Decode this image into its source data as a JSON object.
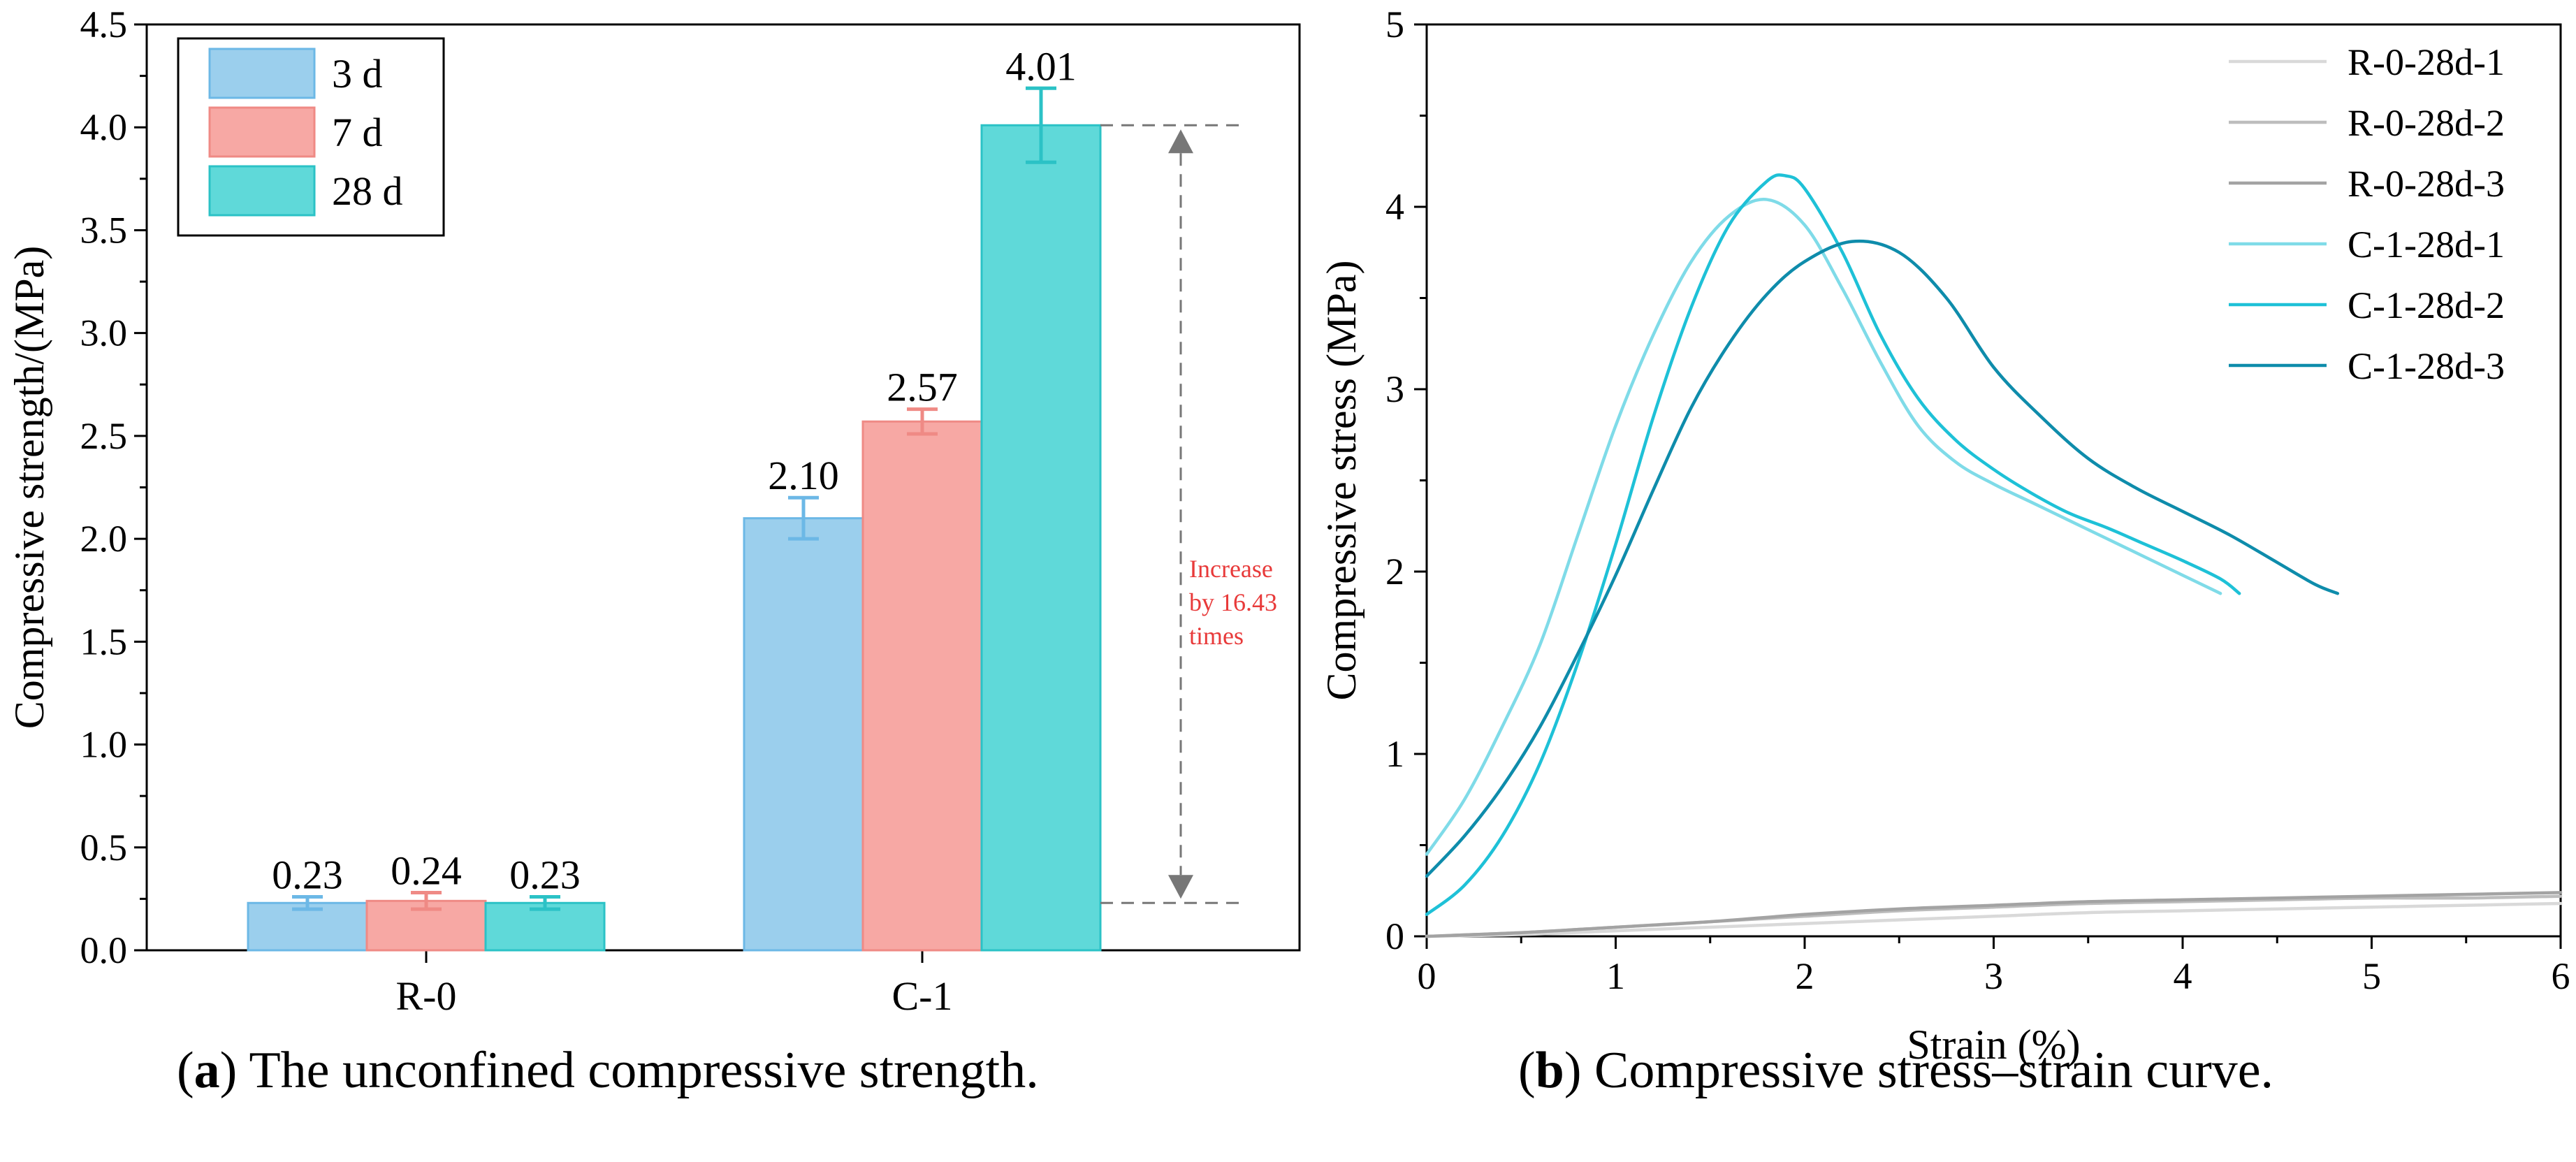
{
  "chart_data": [
    {
      "type": "bar",
      "ylabel": "Compressive strength/(MPa)",
      "xlabel": "",
      "ylim": [
        0,
        4.5
      ],
      "yticks": [
        "0.0",
        "0.5",
        "1.0",
        "1.5",
        "2.0",
        "2.5",
        "3.0",
        "3.5",
        "4.0",
        "4.5"
      ],
      "categories": [
        "R-0",
        "C-1"
      ],
      "series": [
        {
          "name": "3 d",
          "color": "#9bcfed",
          "values": [
            0.23,
            2.1
          ],
          "labels": [
            "0.23",
            "2.10"
          ],
          "errors": [
            0.03,
            0.1
          ]
        },
        {
          "name": "7 d",
          "color": "#f7a8a4",
          "values": [
            0.24,
            2.57
          ],
          "labels": [
            "0.24",
            "2.57"
          ],
          "errors": [
            0.04,
            0.06
          ]
        },
        {
          "name": "28 d",
          "color": "#5fd9d9",
          "values": [
            0.23,
            4.01
          ],
          "labels": [
            "0.23",
            "4.01"
          ],
          "errors": [
            0.03,
            0.18
          ]
        }
      ],
      "annotation": {
        "lines": [
          "Increase",
          "by 16.43",
          "times"
        ],
        "color": "#e83a3a",
        "from": 0.23,
        "to": 4.01
      },
      "legend_position": "top-left",
      "caption_prefix": "a",
      "caption": "The unconfined compressive strength."
    },
    {
      "type": "line",
      "xlabel": "Strain (%)",
      "ylabel": "Compressive stress (MPa)",
      "xlim": [
        0,
        6
      ],
      "ylim": [
        0,
        5
      ],
      "xticks": [
        "0",
        "1",
        "2",
        "3",
        "4",
        "5",
        "6"
      ],
      "yticks": [
        "0",
        "1",
        "2",
        "3",
        "4",
        "5"
      ],
      "legend_position": "top-right",
      "series": [
        {
          "name": "R-0-28d-1",
          "color": "#d9d9d9",
          "x": [
            0,
            0.5,
            1,
            1.5,
            2,
            2.5,
            3,
            3.5,
            4,
            4.5,
            5,
            5.5,
            6
          ],
          "y": [
            0,
            0.01,
            0.03,
            0.05,
            0.07,
            0.09,
            0.11,
            0.13,
            0.14,
            0.15,
            0.16,
            0.17,
            0.18
          ]
        },
        {
          "name": "R-0-28d-2",
          "color": "#bdbdbd",
          "x": [
            0,
            0.5,
            1,
            1.5,
            2,
            2.5,
            3,
            3.5,
            4,
            4.5,
            5,
            5.5,
            6
          ],
          "y": [
            0,
            0.02,
            0.05,
            0.08,
            0.11,
            0.14,
            0.16,
            0.18,
            0.19,
            0.2,
            0.21,
            0.21,
            0.22
          ]
        },
        {
          "name": "R-0-28d-3",
          "color": "#a3a3a3",
          "x": [
            0,
            0.5,
            1,
            1.5,
            2,
            2.5,
            3,
            3.5,
            4,
            4.5,
            5,
            5.5,
            6
          ],
          "y": [
            0,
            0.02,
            0.05,
            0.08,
            0.12,
            0.15,
            0.17,
            0.19,
            0.2,
            0.21,
            0.22,
            0.23,
            0.24
          ]
        },
        {
          "name": "C-1-28d-1",
          "color": "#7fdbe8",
          "x": [
            0,
            0.2,
            0.4,
            0.6,
            0.8,
            1.0,
            1.2,
            1.4,
            1.6,
            1.8,
            2.0,
            2.2,
            2.4,
            2.6,
            2.8,
            3.0,
            3.2,
            3.4,
            3.6,
            3.8,
            4.0,
            4.2
          ],
          "y": [
            0.45,
            0.75,
            1.15,
            1.6,
            2.2,
            2.8,
            3.3,
            3.7,
            3.95,
            4.04,
            3.9,
            3.55,
            3.15,
            2.8,
            2.6,
            2.48,
            2.38,
            2.28,
            2.18,
            2.08,
            1.98,
            1.88
          ]
        },
        {
          "name": "C-1-28d-2",
          "color": "#1ec1d7",
          "x": [
            0,
            0.2,
            0.4,
            0.6,
            0.8,
            1.0,
            1.2,
            1.4,
            1.6,
            1.8,
            1.9,
            2.0,
            2.2,
            2.4,
            2.6,
            2.8,
            3.0,
            3.2,
            3.4,
            3.6,
            3.8,
            4.0,
            4.2,
            4.3
          ],
          "y": [
            0.12,
            0.28,
            0.55,
            0.95,
            1.5,
            2.15,
            2.85,
            3.45,
            3.9,
            4.14,
            4.17,
            4.1,
            3.75,
            3.3,
            2.95,
            2.72,
            2.56,
            2.43,
            2.32,
            2.24,
            2.15,
            2.06,
            1.96,
            1.88
          ]
        },
        {
          "name": "C-1-28d-3",
          "color": "#0e8cab",
          "x": [
            0,
            0.2,
            0.4,
            0.6,
            0.8,
            1.0,
            1.2,
            1.4,
            1.6,
            1.8,
            2.0,
            2.25,
            2.5,
            2.75,
            3.0,
            3.25,
            3.5,
            3.75,
            4.0,
            4.25,
            4.5,
            4.7,
            4.82
          ],
          "y": [
            0.33,
            0.55,
            0.82,
            1.15,
            1.55,
            1.98,
            2.45,
            2.9,
            3.25,
            3.52,
            3.7,
            3.81,
            3.75,
            3.5,
            3.12,
            2.85,
            2.62,
            2.46,
            2.33,
            2.2,
            2.05,
            1.93,
            1.88
          ]
        }
      ],
      "caption_prefix": "b",
      "caption": "Compressive stress–strain curve."
    }
  ]
}
